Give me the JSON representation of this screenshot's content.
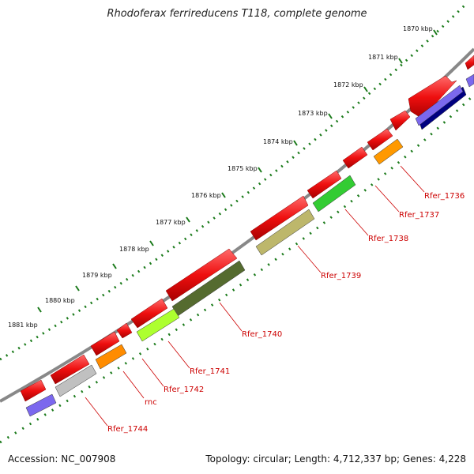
{
  "title": "Rhodoferax ferrireducens T118, complete genome",
  "footer": {
    "accession": "Accession: NC_007908",
    "summary": "Topology: circular; Length: 4,712,337 bp; Genes: 4,228"
  },
  "scale_labels": [
    "1870 kbp",
    "1871 kbp",
    "1872 kbp",
    "1873 kbp",
    "1874 kbp",
    "1875 kbp",
    "1876 kbp",
    "1877 kbp",
    "1878 kbp",
    "1879 kbp",
    "1880 kbp",
    "1881 kbp"
  ],
  "gene_labels": [
    "Rfer_1736",
    "Rfer_1737",
    "Rfer_1738",
    "Rfer_1739",
    "Rfer_1740",
    "Rfer_1741",
    "Rfer_1742",
    "rnc",
    "Rfer_1744"
  ],
  "colors": {
    "backbone": "#888888",
    "tick": "#1a7a1a",
    "forward_gene": "#ee1111",
    "label_red": "#cc0000"
  }
}
